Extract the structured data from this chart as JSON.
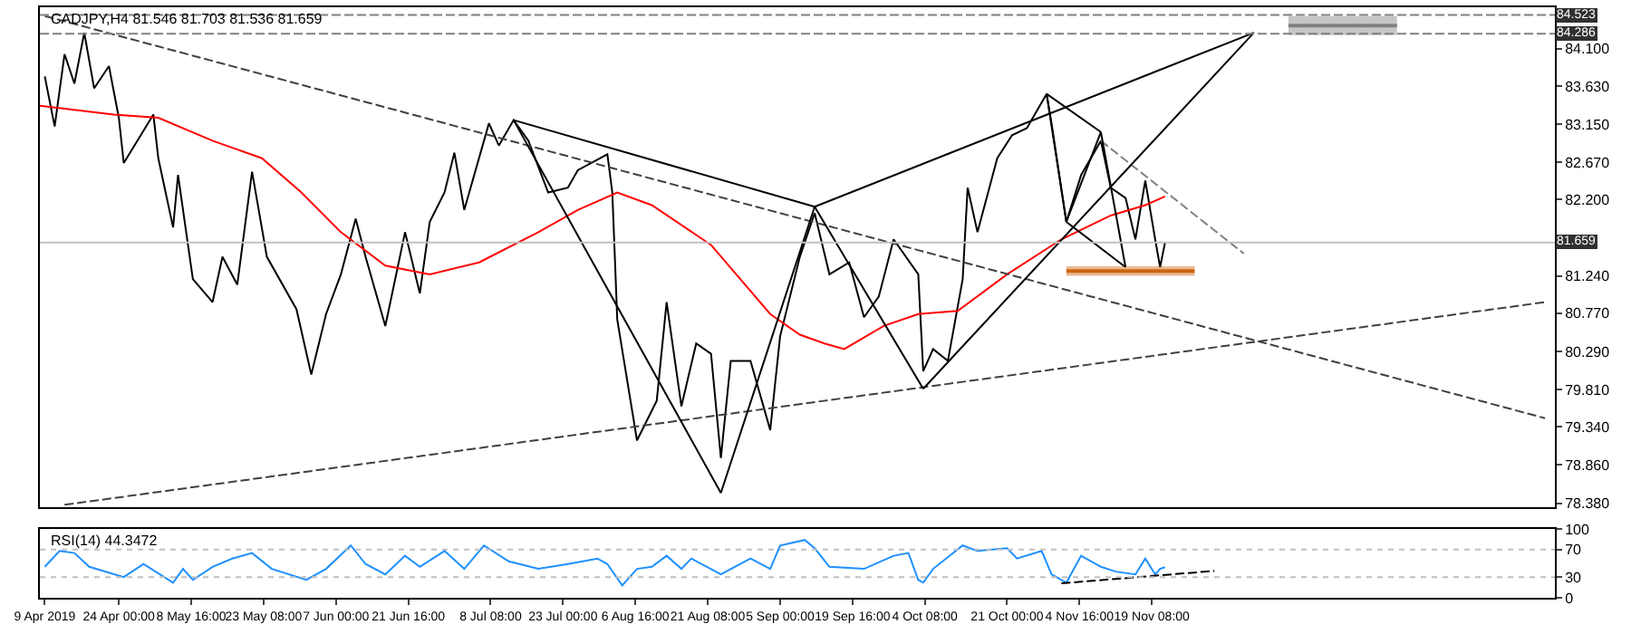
{
  "chart_data": [
    {
      "type": "line",
      "title": "CADJPY,H4 81.546 81.703 81.536 81.659",
      "tick_labels": "y",
      "xlim": [
        "2019-04-08",
        "2020-02-09"
      ],
      "ylim": [
        78.33,
        84.62
      ],
      "yticks": [
        {
          "value": 84.1,
          "label": "84.100"
        },
        {
          "value": 83.63,
          "label": "83.630"
        },
        {
          "value": 83.15,
          "label": "83.150"
        },
        {
          "value": 82.67,
          "label": "82.670"
        },
        {
          "value": 82.2,
          "label": "82.200"
        },
        {
          "value": 81.24,
          "label": "81.240"
        },
        {
          "value": 80.77,
          "label": "80.770"
        },
        {
          "value": 80.29,
          "label": "80.290"
        },
        {
          "value": 79.81,
          "label": "79.810"
        },
        {
          "value": 79.34,
          "label": "79.340"
        },
        {
          "value": 78.86,
          "label": "78.860"
        },
        {
          "value": 78.38,
          "label": "78.380"
        }
      ],
      "ref_lines": [
        {
          "axis": "y",
          "value": 84.523,
          "label": "84.523",
          "color": "#808080",
          "line_style": "dashed"
        },
        {
          "axis": "y",
          "value": 84.286,
          "label": "84.286",
          "color": "#808080",
          "line_style": "dashed"
        },
        {
          "axis": "y",
          "value": 81.659,
          "label": "81.659",
          "color": "#c0c0c0",
          "line_style": "solid"
        }
      ],
      "series": [
        {
          "color": "#000000",
          "x": [
            "2019-04-09",
            "2019-04-11",
            "2019-04-13",
            "2019-04-15",
            "2019-04-17",
            "2019-04-19",
            "2019-04-22",
            "2019-04-24",
            "2019-04-25",
            "2019-05-01",
            "2019-05-02",
            "2019-05-05",
            "2019-05-06",
            "2019-05-09",
            "2019-05-13",
            "2019-05-15",
            "2019-05-18",
            "2019-05-21",
            "2019-05-24",
            "2019-05-30",
            "2019-06-02",
            "2019-06-05",
            "2019-06-08",
            "2019-06-11",
            "2019-06-13",
            "2019-06-17",
            "2019-06-21",
            "2019-06-24",
            "2019-06-26",
            "2019-06-29",
            "2019-07-01",
            "2019-07-03",
            "2019-07-08",
            "2019-07-10",
            "2019-07-13",
            "2019-07-16",
            "2019-07-20",
            "2019-07-24",
            "2019-07-26",
            "2019-08-01",
            "2019-08-02",
            "2019-08-03",
            "2019-08-07",
            "2019-08-11",
            "2019-08-13",
            "2019-08-16",
            "2019-08-19",
            "2019-08-22",
            "2019-08-24",
            "2019-08-26",
            "2019-08-30",
            "2019-09-03",
            "2019-09-05",
            "2019-09-09",
            "2019-09-12",
            "2019-09-15",
            "2019-09-19",
            "2019-09-22",
            "2019-09-25",
            "2019-09-28",
            "2019-10-03",
            "2019-10-04",
            "2019-10-06",
            "2019-10-09",
            "2019-10-12",
            "2019-10-13",
            "2019-10-15",
            "2019-10-19",
            "2019-10-22",
            "2019-10-25",
            "2019-10-29",
            "2019-10-30",
            "2019-11-02",
            "2019-11-05",
            "2019-11-09",
            "2019-11-11",
            "2019-11-14",
            "2019-11-16",
            "2019-11-18",
            "2019-11-20",
            "2019-11-21",
            "2019-11-22"
          ],
          "values": [
            83.75,
            83.12,
            84.03,
            83.66,
            84.3,
            83.6,
            83.88,
            83.23,
            82.66,
            83.27,
            82.72,
            81.85,
            82.51,
            81.2,
            80.91,
            81.48,
            81.13,
            82.55,
            81.48,
            80.82,
            80.0,
            80.76,
            81.26,
            81.96,
            81.48,
            80.61,
            81.79,
            81.02,
            81.92,
            82.29,
            82.79,
            82.07,
            83.16,
            82.88,
            83.2,
            82.94,
            82.29,
            82.35,
            82.57,
            82.77,
            82.29,
            80.69,
            79.17,
            79.67,
            80.91,
            79.6,
            80.39,
            80.26,
            78.95,
            80.17,
            80.17,
            79.3,
            80.48,
            81.48,
            82.03,
            81.26,
            81.41,
            80.72,
            80.98,
            81.7,
            81.26,
            80.04,
            80.32,
            80.17,
            81.2,
            82.35,
            81.79,
            82.72,
            83.01,
            83.1,
            83.53,
            83.16,
            81.92,
            82.51,
            82.94,
            82.35,
            82.22,
            81.7,
            82.44,
            81.7,
            81.35,
            81.659
          ]
        },
        {
          "color": "#ff0000",
          "x": [
            "2019-04-08",
            "2019-04-23",
            "2019-05-02",
            "2019-05-13",
            "2019-05-23",
            "2019-05-31",
            "2019-06-08",
            "2019-06-17",
            "2019-06-26",
            "2019-07-06",
            "2019-07-18",
            "2019-07-26",
            "2019-08-03",
            "2019-08-10",
            "2019-08-22",
            "2019-09-03",
            "2019-09-09",
            "2019-09-14",
            "2019-09-18",
            "2019-09-26",
            "2019-10-03",
            "2019-10-11",
            "2019-10-21",
            "2019-11-01",
            "2019-11-11",
            "2019-11-18",
            "2019-11-22"
          ],
          "values": [
            83.38,
            83.27,
            83.23,
            82.94,
            82.72,
            82.29,
            81.79,
            81.37,
            81.26,
            81.41,
            81.79,
            82.07,
            82.29,
            82.13,
            81.63,
            80.76,
            80.5,
            80.39,
            80.32,
            80.61,
            80.76,
            80.8,
            81.26,
            81.7,
            82.0,
            82.13,
            82.24
          ]
        },
        {
          "color": "#404040",
          "line_style": "dashed",
          "x": [
            "2019-04-09",
            "2020-02-07"
          ],
          "values": [
            84.51,
            79.45
          ]
        },
        {
          "color": "#404040",
          "line_style": "dashed",
          "x": [
            "2019-04-13",
            "2020-02-07"
          ],
          "values": [
            78.36,
            80.91
          ]
        },
        {
          "color": "#808080",
          "line_style": "dashed",
          "x": [
            "2019-11-09",
            "2019-12-08"
          ],
          "values": [
            82.94,
            81.52
          ]
        },
        {
          "color": "#000000",
          "x": [
            "2019-07-13",
            "2019-08-24"
          ],
          "values": [
            83.2,
            78.51
          ]
        },
        {
          "color": "#000000",
          "x": [
            "2019-08-24",
            "2019-09-12"
          ],
          "values": [
            78.51,
            82.11
          ]
        },
        {
          "color": "#000000",
          "x": [
            "2019-07-13",
            "2019-09-12"
          ],
          "values": [
            83.2,
            82.11
          ]
        },
        {
          "color": "#000000",
          "x": [
            "2019-09-12",
            "2019-10-04"
          ],
          "values": [
            82.11,
            79.82
          ]
        },
        {
          "color": "#000000",
          "x": [
            "2019-10-04",
            "2019-12-10"
          ],
          "values": [
            79.82,
            84.3
          ]
        },
        {
          "color": "#000000",
          "x": [
            "2019-09-12",
            "2019-12-10"
          ],
          "values": [
            82.11,
            84.3
          ]
        },
        {
          "color": "#000000",
          "x": [
            "2019-10-29",
            "2019-11-02"
          ],
          "values": [
            83.53,
            81.92
          ]
        },
        {
          "color": "#000000",
          "x": [
            "2019-10-29",
            "2019-11-09"
          ],
          "values": [
            83.53,
            83.05
          ]
        },
        {
          "color": "#000000",
          "x": [
            "2019-11-02",
            "2019-11-09"
          ],
          "values": [
            81.92,
            83.05
          ]
        },
        {
          "color": "#000000",
          "x": [
            "2019-11-02",
            "2019-11-14"
          ],
          "values": [
            81.92,
            81.35
          ]
        },
        {
          "color": "#000000",
          "x": [
            "2019-11-09",
            "2019-11-14"
          ],
          "values": [
            83.05,
            81.35
          ]
        },
        {
          "color": "#cc6611",
          "x": [
            "2019-11-02",
            "2019-11-28"
          ],
          "values": [
            81.3,
            81.3
          ],
          "lower": [
            81.24,
            81.24
          ],
          "upper": [
            81.36,
            81.36
          ]
        },
        {
          "color": "#808080",
          "x": [
            "2019-12-17",
            "2020-01-08"
          ],
          "values": [
            84.39,
            84.39
          ],
          "lower": [
            84.27,
            84.27
          ],
          "upper": [
            84.51,
            84.51
          ]
        }
      ]
    },
    {
      "type": "line",
      "title": "RSI(14) 44.3472",
      "xlim": [
        "2019-04-08",
        "2020-02-09"
      ],
      "xticks": [
        {
          "value": "2019-04-09",
          "label": "9 Apr 2019"
        },
        {
          "value": "2019-04-24T00:00",
          "label": "24 Apr 00:00"
        },
        {
          "value": "2019-05-08T16:00",
          "label": "8 May 16:00"
        },
        {
          "value": "2019-05-23T08:00",
          "label": "23 May 08:00"
        },
        {
          "value": "2019-06-07T00:00",
          "label": "7 Jun 00:00"
        },
        {
          "value": "2019-06-21T16:00",
          "label": "21 Jun 16:00"
        },
        {
          "value": "2019-07-08T08:00",
          "label": "8 Jul 08:00"
        },
        {
          "value": "2019-07-23T00:00",
          "label": "23 Jul 00:00"
        },
        {
          "value": "2019-08-06T16:00",
          "label": "6 Aug 16:00"
        },
        {
          "value": "2019-08-21T08:00",
          "label": "21 Aug 08:00"
        },
        {
          "value": "2019-09-05T00:00",
          "label": "5 Sep 00:00"
        },
        {
          "value": "2019-09-19T16:00",
          "label": "19 Sep 16:00"
        },
        {
          "value": "2019-10-04T08:00",
          "label": "4 Oct 08:00"
        },
        {
          "value": "2019-10-21T00:00",
          "label": "21 Oct 00:00"
        },
        {
          "value": "2019-11-04T16:00",
          "label": "4 Nov 16:00"
        },
        {
          "value": "2019-11-19T08:00",
          "label": "19 Nov 08:00"
        }
      ],
      "ylim": [
        0,
        100
      ],
      "yticks": [
        100,
        70,
        30,
        0
      ],
      "ref_lines": [
        {
          "axis": "y",
          "value": 70,
          "color": "#c0c0c0",
          "line_style": "dotted"
        },
        {
          "axis": "y",
          "value": 30,
          "color": "#c0c0c0",
          "line_style": "dotted"
        }
      ],
      "series": [
        {
          "color": "#1e90ff",
          "x": [
            "2019-04-09",
            "2019-04-12",
            "2019-04-15",
            "2019-04-18",
            "2019-04-25",
            "2019-04-29",
            "2019-05-05",
            "2019-05-07",
            "2019-05-09",
            "2019-05-13",
            "2019-05-17",
            "2019-05-21",
            "2019-05-25",
            "2019-06-01",
            "2019-06-05",
            "2019-06-10",
            "2019-06-13",
            "2019-06-17",
            "2019-06-21",
            "2019-06-24",
            "2019-06-29",
            "2019-07-03",
            "2019-07-07",
            "2019-07-12",
            "2019-07-18",
            "2019-07-24",
            "2019-07-30",
            "2019-08-01",
            "2019-08-04",
            "2019-08-07",
            "2019-08-10",
            "2019-08-13",
            "2019-08-16",
            "2019-08-18",
            "2019-08-24",
            "2019-08-30",
            "2019-09-03",
            "2019-09-05",
            "2019-09-10",
            "2019-09-12",
            "2019-09-15",
            "2019-09-22",
            "2019-09-28",
            "2019-10-01",
            "2019-10-03",
            "2019-10-04",
            "2019-10-06",
            "2019-10-12",
            "2019-10-15",
            "2019-10-21",
            "2019-10-23",
            "2019-10-28",
            "2019-10-30",
            "2019-11-02",
            "2019-11-05",
            "2019-11-09",
            "2019-11-12",
            "2019-11-16",
            "2019-11-18",
            "2019-11-20",
            "2019-11-21",
            "2019-11-22"
          ],
          "values": [
            45,
            68,
            65,
            45,
            30,
            49,
            22,
            42,
            26,
            45,
            57,
            65,
            42,
            26,
            42,
            76,
            49,
            34,
            61,
            45,
            68,
            42,
            76,
            53,
            42,
            49,
            57,
            49,
            18,
            42,
            45,
            61,
            42,
            57,
            34,
            57,
            42,
            76,
            84,
            72,
            45,
            42,
            61,
            65,
            26,
            22,
            42,
            76,
            68,
            72,
            57,
            68,
            34,
            22,
            61,
            45,
            38,
            34,
            57,
            34,
            42,
            44.3472
          ]
        },
        {
          "color": "#000000",
          "line_style": "dashed",
          "x": [
            "2019-11-01",
            "2019-12-02"
          ],
          "values": [
            21,
            39
          ]
        }
      ]
    }
  ]
}
